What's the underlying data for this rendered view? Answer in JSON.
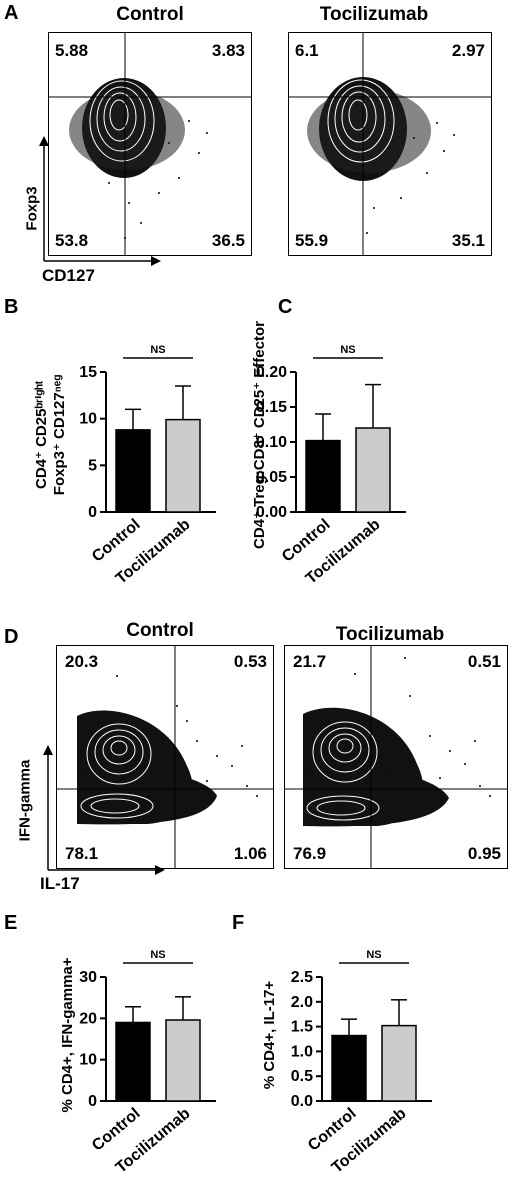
{
  "panels": {
    "A": {
      "letter": "A",
      "x_label": "CD127",
      "y_label": "Foxp3",
      "plots": [
        {
          "title": "Control",
          "tl": "5.88",
          "tr": "3.83",
          "bl": "53.8",
          "br": "36.5"
        },
        {
          "title": "Tocilizumab",
          "tl": "6.1",
          "tr": "2.97",
          "bl": "55.9",
          "br": "35.1"
        }
      ]
    },
    "D": {
      "letter": "D",
      "x_label": "IL-17",
      "y_label": "IFN-gamma",
      "plots": [
        {
          "title": "Control",
          "tl": "20.3",
          "tr": "0.53",
          "bl": "78.1",
          "br": "1.06"
        },
        {
          "title": "Tocilizumab",
          "tl": "21.7",
          "tr": "0.51",
          "bl": "76.9",
          "br": "0.95"
        }
      ]
    }
  },
  "chart_data": [
    {
      "panel": "B",
      "type": "bar",
      "categories": [
        "Control",
        "Tocilizumab"
      ],
      "values": [
        8.8,
        9.9
      ],
      "errors": [
        2.2,
        3.6
      ],
      "colors": [
        "#000000",
        "#cccccc"
      ],
      "ylabel_line1": "CD4⁺ CD25ᵇʳⁱᵍʰᵗ",
      "ylabel_line2": "Foxp3⁺ CD127ⁿᵉᵍ",
      "ylim": [
        0,
        15
      ],
      "yticks": [
        "0",
        "5",
        "10",
        "15"
      ],
      "annotation": "NS"
    },
    {
      "panel": "C",
      "type": "bar",
      "categories": [
        "Control",
        "Tocilizumab"
      ],
      "values": [
        0.102,
        0.12
      ],
      "errors": [
        0.038,
        0.062
      ],
      "colors": [
        "#000000",
        "#cccccc"
      ],
      "ylabel_line1": "CD4⁺ Treg:CD8⁺ CD25⁺ Effector",
      "ylim": [
        0,
        0.2
      ],
      "yticks": [
        "0.00",
        "0.05",
        "0.10",
        "0.15",
        "0.20"
      ],
      "annotation": "NS"
    },
    {
      "panel": "E",
      "type": "bar",
      "categories": [
        "Control",
        "Tocilizumab"
      ],
      "values": [
        19.0,
        19.6
      ],
      "errors": [
        3.8,
        5.6
      ],
      "colors": [
        "#000000",
        "#cccccc"
      ],
      "ylabel_line1": "% CD4+, IFN-gamma+",
      "ylim": [
        0,
        30
      ],
      "yticks": [
        "0",
        "10",
        "20",
        "30"
      ],
      "annotation": "NS"
    },
    {
      "panel": "F",
      "type": "bar",
      "categories": [
        "Control",
        "Tocilizumab"
      ],
      "values": [
        1.32,
        1.52
      ],
      "errors": [
        0.33,
        0.52
      ],
      "colors": [
        "#000000",
        "#cccccc"
      ],
      "ylabel_line1": "% CD4+, IL-17+",
      "ylim": [
        0,
        2.5
      ],
      "yticks": [
        "0.0",
        "0.5",
        "1.0",
        "1.5",
        "2.0",
        "2.5"
      ],
      "annotation": "NS"
    }
  ]
}
